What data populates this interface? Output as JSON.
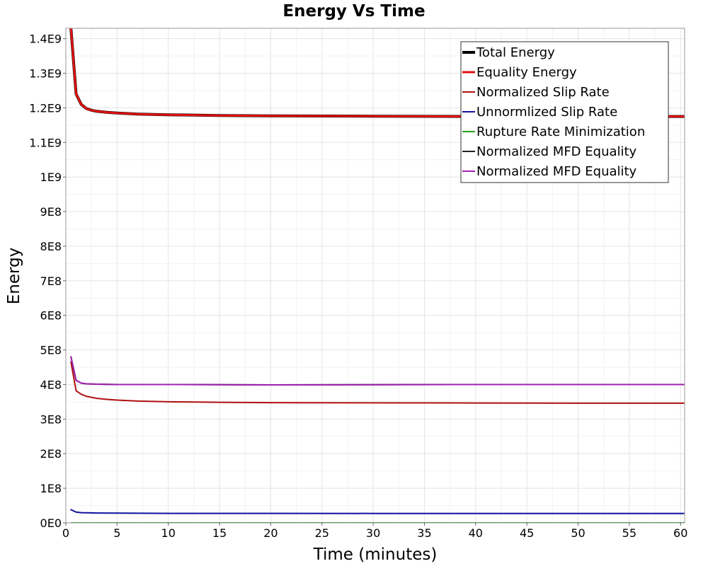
{
  "chart_data": {
    "type": "line",
    "title": "Energy Vs Time",
    "xlabel": "Time (minutes)",
    "ylabel": "Energy",
    "xlim": [
      0,
      60.4
    ],
    "ylim": [
      0,
      1430000000.0
    ],
    "x_ticks": [
      0,
      5,
      10,
      15,
      20,
      25,
      30,
      35,
      40,
      45,
      50,
      55,
      60
    ],
    "x_tick_labels": [
      "0",
      "5",
      "10",
      "15",
      "20",
      "25",
      "30",
      "35",
      "40",
      "45",
      "50",
      "55",
      "60"
    ],
    "y_ticks": [
      0,
      100000000.0,
      200000000.0,
      300000000.0,
      400000000.0,
      500000000.0,
      600000000.0,
      700000000.0,
      800000000.0,
      900000000.0,
      1000000000.0,
      1100000000.0,
      1200000000.0,
      1300000000.0,
      1400000000.0
    ],
    "y_tick_labels": [
      "0E0",
      "1E8",
      "2E8",
      "3E8",
      "4E8",
      "5E8",
      "6E8",
      "7E8",
      "8E8",
      "9E8",
      "1E9",
      "1.1E9",
      "1.2E9",
      "1.3E9",
      "1.4E9"
    ],
    "grid": true,
    "legend_position": "top-right",
    "series": [
      {
        "name": "Total Energy",
        "color": "#000000",
        "width": 4,
        "x": [
          0.5,
          1,
          1.5,
          2,
          2.5,
          3,
          4,
          5,
          7,
          10,
          15,
          20,
          30,
          40,
          50,
          60.4
        ],
        "y": [
          1430000000.0,
          1240000000.0,
          1210000000.0,
          1198000000.0,
          1193000000.0,
          1190000000.0,
          1187000000.0,
          1185000000.0,
          1182000000.0,
          1180000000.0,
          1178000000.0,
          1177000000.0,
          1176000000.0,
          1175000000.0,
          1175000000.0,
          1175000000.0
        ]
      },
      {
        "name": "Equality Energy",
        "color": "#e01010",
        "width": 3,
        "x": [
          0.5,
          1,
          1.5,
          2,
          2.5,
          3,
          4,
          5,
          7,
          10,
          15,
          20,
          30,
          40,
          50,
          60.4
        ],
        "y": [
          1430000000.0,
          1240000000.0,
          1210000000.0,
          1198000000.0,
          1193000000.0,
          1190000000.0,
          1187000000.0,
          1185000000.0,
          1182000000.0,
          1180000000.0,
          1178000000.0,
          1177000000.0,
          1176000000.0,
          1175000000.0,
          1175000000.0,
          1175000000.0
        ]
      },
      {
        "name": "Normalized Slip Rate",
        "color": "#b01010",
        "width": 2,
        "x": [
          0.5,
          1,
          1.5,
          2,
          3,
          4,
          5,
          7,
          10,
          15,
          20,
          30,
          40,
          50,
          60.4
        ],
        "y": [
          465000000.0,
          382000000.0,
          372000000.0,
          366000000.0,
          360000000.0,
          357000000.0,
          355000000.0,
          352000000.0,
          350000000.0,
          348500000.0,
          347500000.0,
          347000000.0,
          346500000.0,
          346000000.0,
          346000000.0
        ]
      },
      {
        "name": "Unnormlized Slip Rate",
        "color": "#1010a0",
        "width": 2,
        "x": [
          0.5,
          1,
          1.5,
          2,
          3,
          5,
          10,
          20,
          30,
          40,
          50,
          60.4
        ],
        "y": [
          38000000.0,
          31000000.0,
          29500000.0,
          29000000.0,
          28500000.0,
          28000000.0,
          27500000.0,
          27500000.0,
          27200000.0,
          27200000.0,
          27200000.0,
          27200000.0
        ]
      },
      {
        "name": "Rupture Rate Minimization",
        "color": "#20a020",
        "width": 2,
        "x": [
          0.5,
          60.4
        ],
        "y": [
          0,
          0
        ]
      },
      {
        "name": "Normalized MFD Equality",
        "color": "#222222",
        "width": 2,
        "x": [
          0.5,
          1,
          1.5,
          2,
          3,
          5,
          10,
          20,
          30,
          40,
          50,
          60.4
        ],
        "y": [
          480000000.0,
          412000000.0,
          404000000.0,
          402000000.0,
          401000000.0,
          400000000.0,
          400000000.0,
          399000000.0,
          399500000.0,
          400000000.0,
          400000000.0,
          400000000.0
        ]
      },
      {
        "name": "Normalized MFD Equality",
        "color": "#a020b0",
        "width": 2,
        "x": [
          0.5,
          1,
          1.5,
          2,
          3,
          5,
          10,
          20,
          30,
          40,
          50,
          60.4
        ],
        "y": [
          480000000.0,
          412000000.0,
          404000000.0,
          402000000.0,
          401000000.0,
          400000000.0,
          400000000.0,
          399000000.0,
          399500000.0,
          400000000.0,
          400000000.0,
          400000000.0
        ]
      }
    ]
  }
}
